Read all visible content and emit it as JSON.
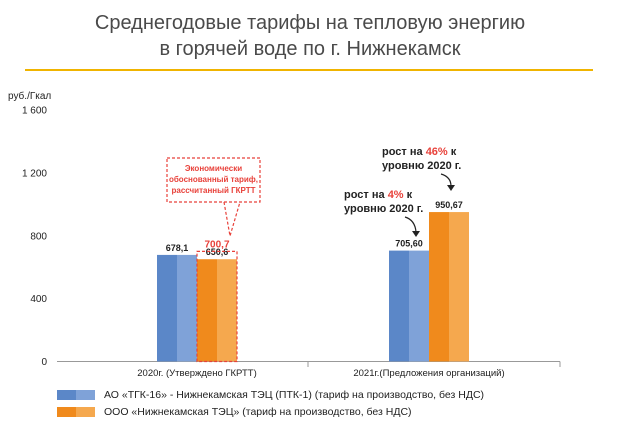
{
  "title": {
    "line1": "Среднегодовые тарифы на тепловую энергию",
    "line2": "в горячей воде по г. Нижнекамск"
  },
  "colors": {
    "rule": "#f0b400",
    "blue": "#5b87c8",
    "blue_light": "#7fa2d8",
    "orange": "#f08a1c",
    "orange_light": "#f5a84e",
    "callout_red": "#e8413a"
  },
  "chart_data": {
    "type": "bar",
    "ylabel": "руб./Гкал",
    "ylim": [
      0,
      1600
    ],
    "yticks": [
      {
        "value": 0,
        "label": "0"
      },
      {
        "value": 400,
        "label": "400"
      },
      {
        "value": 800,
        "label": "800"
      },
      {
        "value": 1200,
        "label": "1 200"
      },
      {
        "value": 1600,
        "label": "1 600"
      }
    ],
    "categories": [
      "2020г. (Утверждено ГКРТТ)",
      "2021г.(Предложения организаций)"
    ],
    "series": [
      {
        "name": "АО «ТГК-16» - Нижнекамская ТЭЦ (ПТК-1) (тариф на производство, без НДС)",
        "values": [
          678.1,
          705.6
        ],
        "labels": [
          "678,1",
          "705,60"
        ]
      },
      {
        "name": "ООО «Нижнекамская ТЭЦ» (тариф на производство, без НДС)",
        "values": [
          650.6,
          950.67
        ],
        "labels": [
          "650,6",
          "950,67"
        ]
      }
    ],
    "reference": {
      "value": 700.7,
      "label": "700,7",
      "category_index": 0,
      "series_index": 1
    },
    "legend_position": "bottom-left",
    "grid": false
  },
  "annotations": {
    "callout": {
      "line1": "Экономически",
      "line2": "обоснованный тариф,",
      "line3": "рассчитанный ГКРТТ"
    },
    "growth_blue": {
      "pre": "рост на ",
      "pct": "4%",
      "post": " к",
      "line2": "уровню 2020 г."
    },
    "growth_orange": {
      "pre": "рост на ",
      "pct": "46%",
      "post": " к",
      "line2": "уровню 2020 г."
    }
  }
}
